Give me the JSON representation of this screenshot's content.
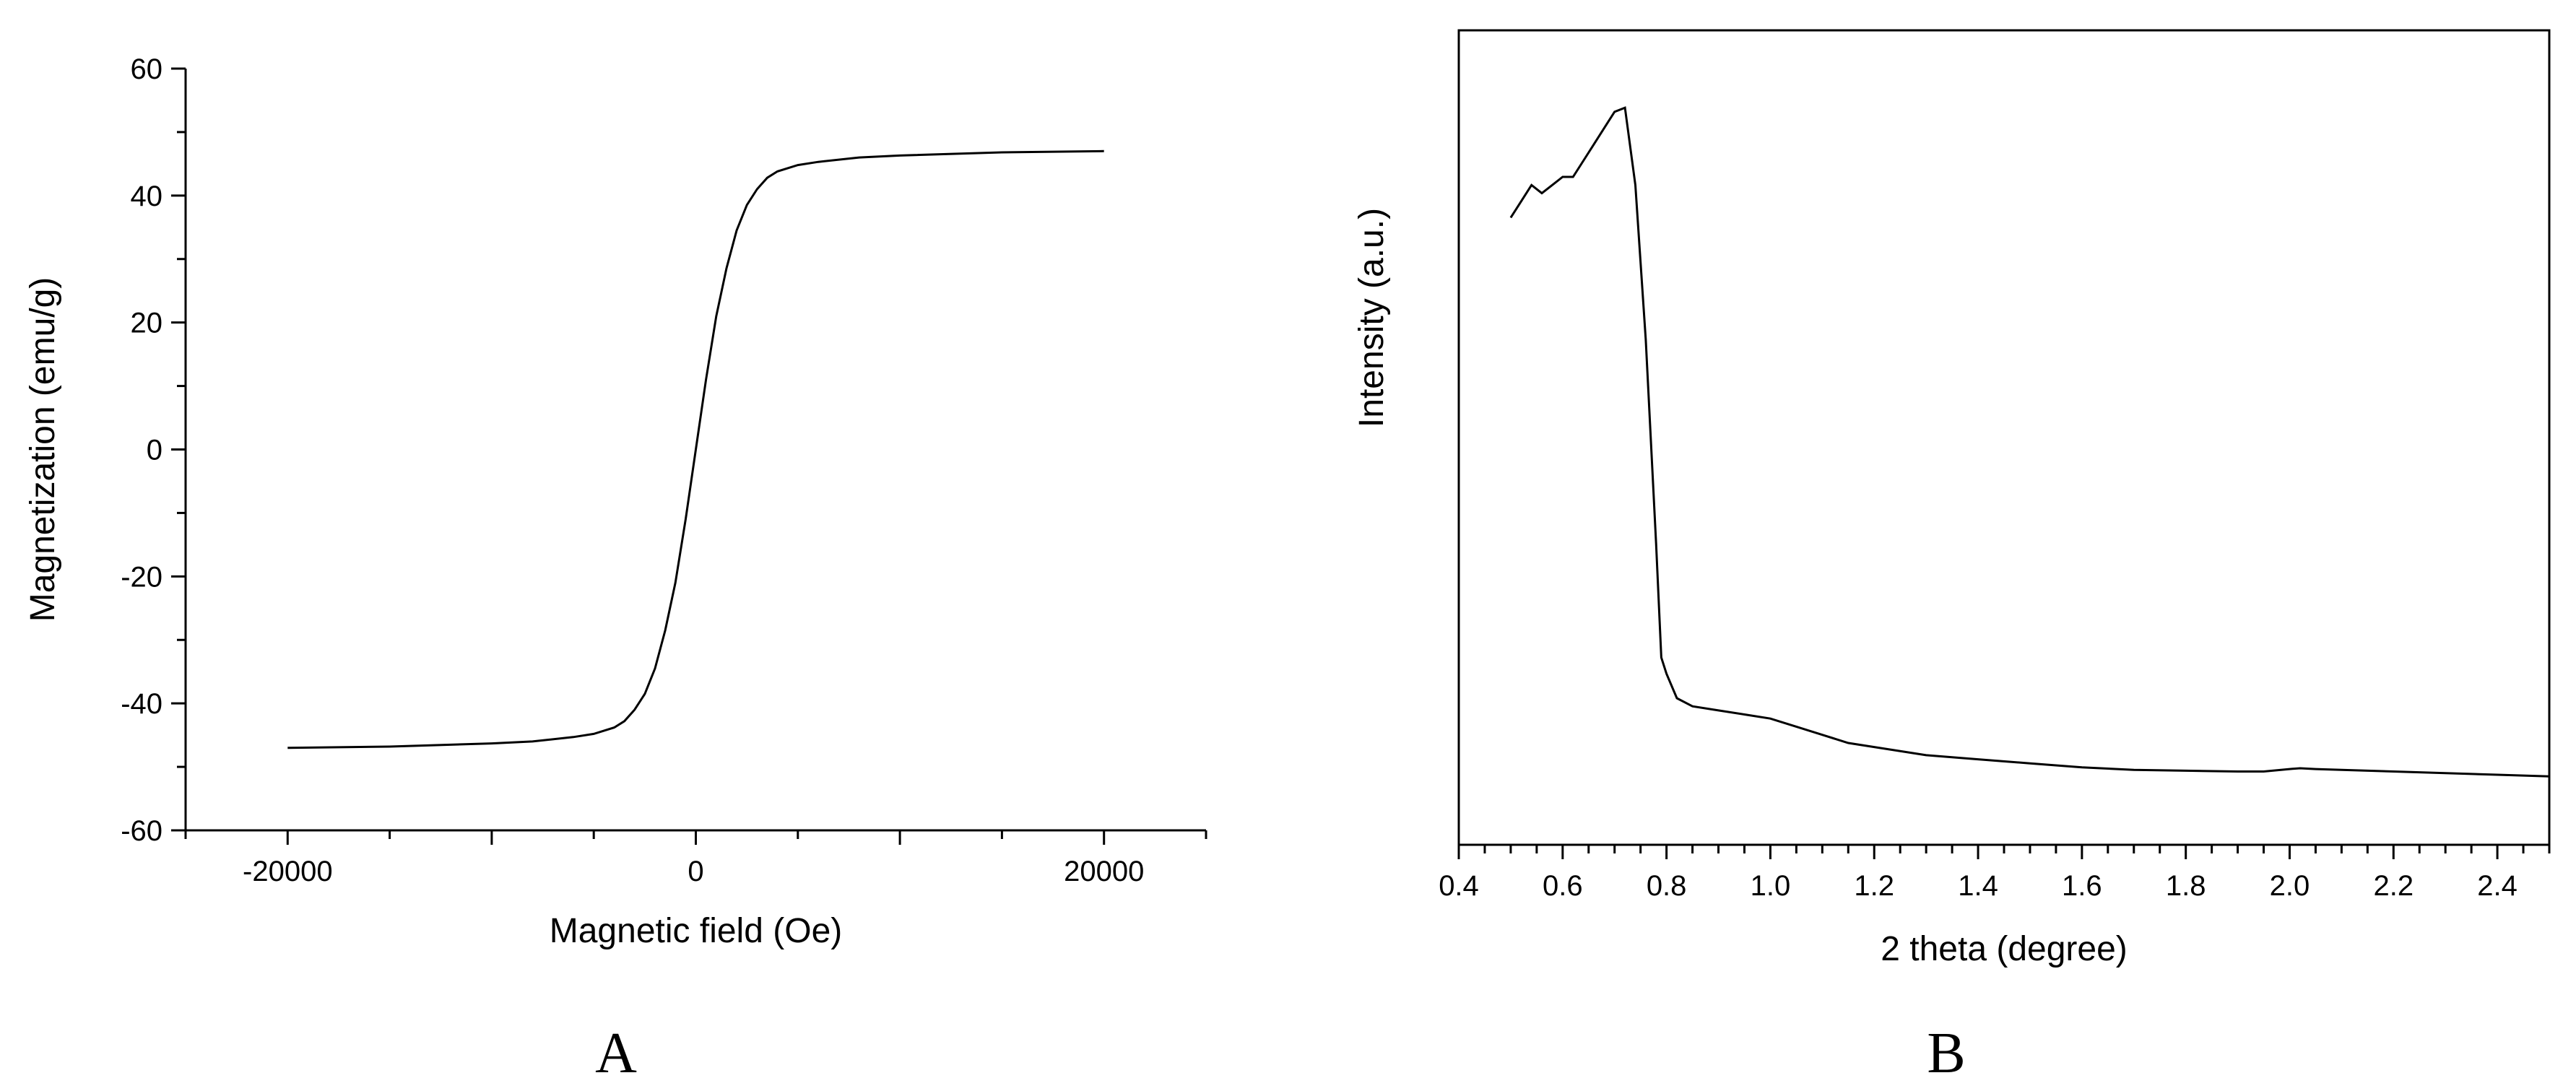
{
  "chart_data": [
    {
      "type": "line",
      "panel_label": "A",
      "xlabel": "Magnetic field (Oe)",
      "ylabel": "Magnetization (emu/g)",
      "xlim": [
        -25000,
        25000
      ],
      "ylim": [
        -60,
        60
      ],
      "x_ticks": [
        -20000,
        0,
        20000
      ],
      "y_ticks": [
        -60,
        -40,
        -20,
        0,
        20,
        40,
        60
      ],
      "grid": false,
      "series": [
        {
          "x": [
            -20000,
            -15000,
            -10000,
            -8000,
            -6000,
            -5000,
            -4000,
            -3500,
            -3000,
            -2500,
            -2000,
            -1500,
            -1000,
            -500,
            0,
            500,
            1000,
            1500,
            2000,
            2500,
            3000,
            3500,
            4000,
            5000,
            6000,
            8000,
            10000,
            15000,
            20000
          ],
          "y": [
            -47,
            -46.8,
            -46.3,
            -46.0,
            -45.3,
            -44.8,
            -43.8,
            -42.8,
            -41.0,
            -38.5,
            -34.5,
            -28.5,
            -21.0,
            -11.0,
            0,
            11.0,
            21.0,
            28.5,
            34.5,
            38.5,
            41.0,
            42.8,
            43.8,
            44.8,
            45.3,
            46.0,
            46.3,
            46.8,
            47
          ]
        }
      ]
    },
    {
      "type": "line",
      "panel_label": "B",
      "xlabel": "2 theta (degree)",
      "ylabel": "Intensity (a.u.)",
      "xlim": [
        0.4,
        2.5
      ],
      "ylim": [
        0,
        100
      ],
      "x_ticks": [
        "0.4",
        "0.6",
        "0.8",
        "1.0",
        "1.2",
        "1.4",
        "1.6",
        "1.8",
        "2.0",
        "2.2",
        "2.4"
      ],
      "y_ticks": [],
      "grid": false,
      "series": [
        {
          "x": [
            0.5,
            0.52,
            0.54,
            0.56,
            0.58,
            0.6,
            0.62,
            0.64,
            0.66,
            0.68,
            0.7,
            0.72,
            0.74,
            0.76,
            0.78,
            0.79,
            0.8,
            0.82,
            0.85,
            0.9,
            0.95,
            1.0,
            1.05,
            1.1,
            1.15,
            1.2,
            1.3,
            1.4,
            1.5,
            1.6,
            1.7,
            1.8,
            1.9,
            1.95,
            2.0,
            2.02,
            2.05,
            2.1,
            2.2,
            2.3,
            2.4,
            2.5
          ],
          "y": [
            77,
            79,
            81,
            80,
            81,
            82,
            82,
            84,
            86,
            88,
            90,
            90.5,
            81,
            62,
            37,
            23,
            21,
            18,
            17,
            16.5,
            16,
            15.5,
            14.5,
            13.5,
            12.5,
            12,
            11,
            10.5,
            10,
            9.5,
            9.2,
            9.1,
            9.0,
            9.0,
            9.3,
            9.4,
            9.3,
            9.2,
            9.0,
            8.8,
            8.6,
            8.4
          ]
        }
      ]
    }
  ]
}
